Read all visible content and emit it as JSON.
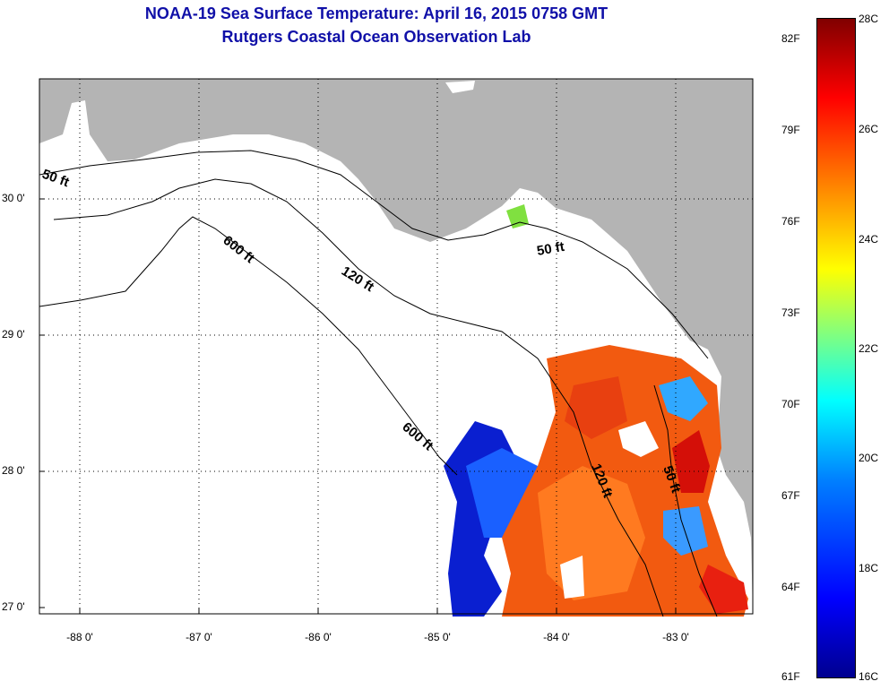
{
  "title": {
    "line1": "NOAA-19 Sea Surface Temperature:  April 16, 2015 0758 GMT",
    "line2": "Rutgers Coastal Ocean Observation Lab"
  },
  "map": {
    "lat_labels": [
      "30 0'",
      "29 0'",
      "28 0'",
      "27 0'"
    ],
    "lon_labels": [
      "-88 0'",
      "-87 0'",
      "-86 0'",
      "-85 0'",
      "-84 0'",
      "-83 0'"
    ],
    "depth_labels": [
      "50 ft",
      "600 ft",
      "120 ft",
      "50 ft",
      "600 ft",
      "120 ft",
      "50 ft"
    ],
    "colors": {
      "land": "#b4b4b4",
      "water": "#ffffff",
      "contour": "#000000"
    }
  },
  "colorbar": {
    "fahrenheit": [
      "82F",
      "79F",
      "76F",
      "73F",
      "70F",
      "67F",
      "64F",
      "61F"
    ],
    "celsius": [
      "28C",
      "26C",
      "24C",
      "22C",
      "20C",
      "18C",
      "16C"
    ]
  }
}
